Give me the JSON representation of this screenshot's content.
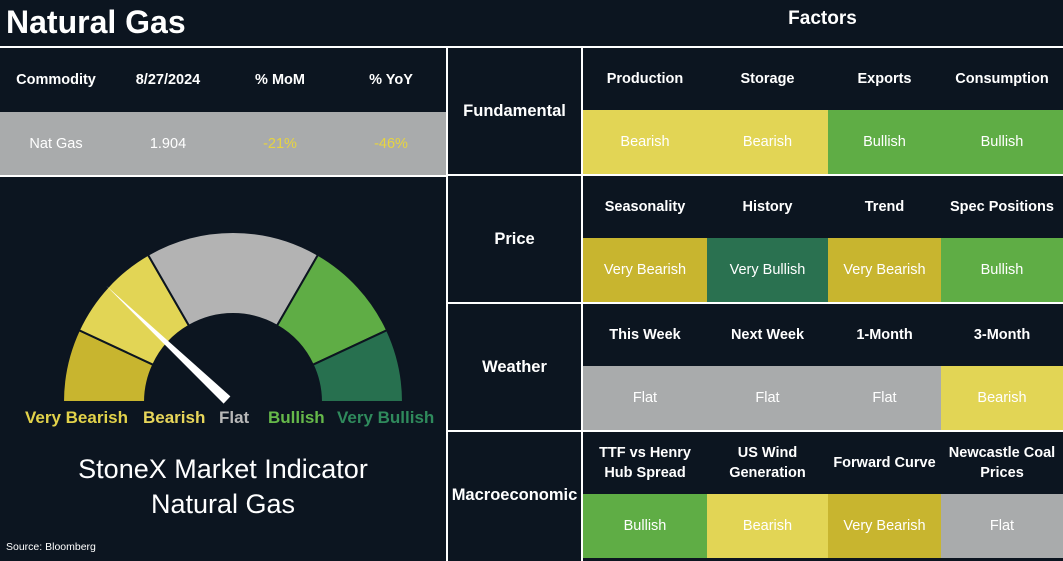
{
  "title": "Natural Gas",
  "factors_title": "Factors",
  "commodity_table": {
    "headers": [
      "Commodity",
      "8/27/2024",
      "% MoM",
      "% YoY"
    ],
    "row": [
      "Nat Gas",
      "1.904",
      "-21%",
      "-46%"
    ]
  },
  "gauge": {
    "labels": [
      "Very Bearish",
      "Bearish",
      "Flat",
      "Bullish",
      "Very Bullish"
    ],
    "label_colors": [
      "#e2d24a",
      "#e8d65a",
      "#b8b8b8",
      "#66b94a",
      "#2f8a5c"
    ],
    "segment_colors": [
      "#c8b52f",
      "#e2d555",
      "#b3b3b3",
      "#5fad45",
      "#27704f"
    ],
    "needle_value": "Bearish",
    "indicator_line1": "StoneX Market Indicator",
    "indicator_line2": "Natural Gas"
  },
  "source": "Source: Bloomberg",
  "status_colors": {
    "Very Bearish": "#c8b52f",
    "Bearish": "#e2d555",
    "Flat": "#a9abac",
    "Bullish": "#5fad45",
    "Very Bullish": "#2a7150"
  },
  "factors": [
    {
      "name": "Fundamental",
      "items": [
        {
          "label": "Production",
          "status": "Bearish"
        },
        {
          "label": "Storage",
          "status": "Bearish"
        },
        {
          "label": "Exports",
          "status": "Bullish"
        },
        {
          "label": "Consumption",
          "status": "Bullish"
        }
      ]
    },
    {
      "name": "Price",
      "items": [
        {
          "label": "Seasonality",
          "status": "Very Bearish"
        },
        {
          "label": "History",
          "status": "Very Bullish"
        },
        {
          "label": "Trend",
          "status": "Very Bearish"
        },
        {
          "label": "Spec Positions",
          "status": "Bullish"
        }
      ]
    },
    {
      "name": "Weather",
      "items": [
        {
          "label": "This Week",
          "status": "Flat"
        },
        {
          "label": "Next Week",
          "status": "Flat"
        },
        {
          "label": "1-Month",
          "status": "Flat"
        },
        {
          "label": "3-Month",
          "status": "Bearish"
        }
      ]
    },
    {
      "name": "Macroeconomic",
      "items": [
        {
          "label": "TTF vs Henry Hub Spread",
          "status": "Bullish"
        },
        {
          "label": "US Wind Generation",
          "status": "Bearish"
        },
        {
          "label": "Forward Curve",
          "status": "Very Bearish"
        },
        {
          "label": "Newcastle Coal Prices",
          "status": "Flat"
        }
      ]
    }
  ]
}
